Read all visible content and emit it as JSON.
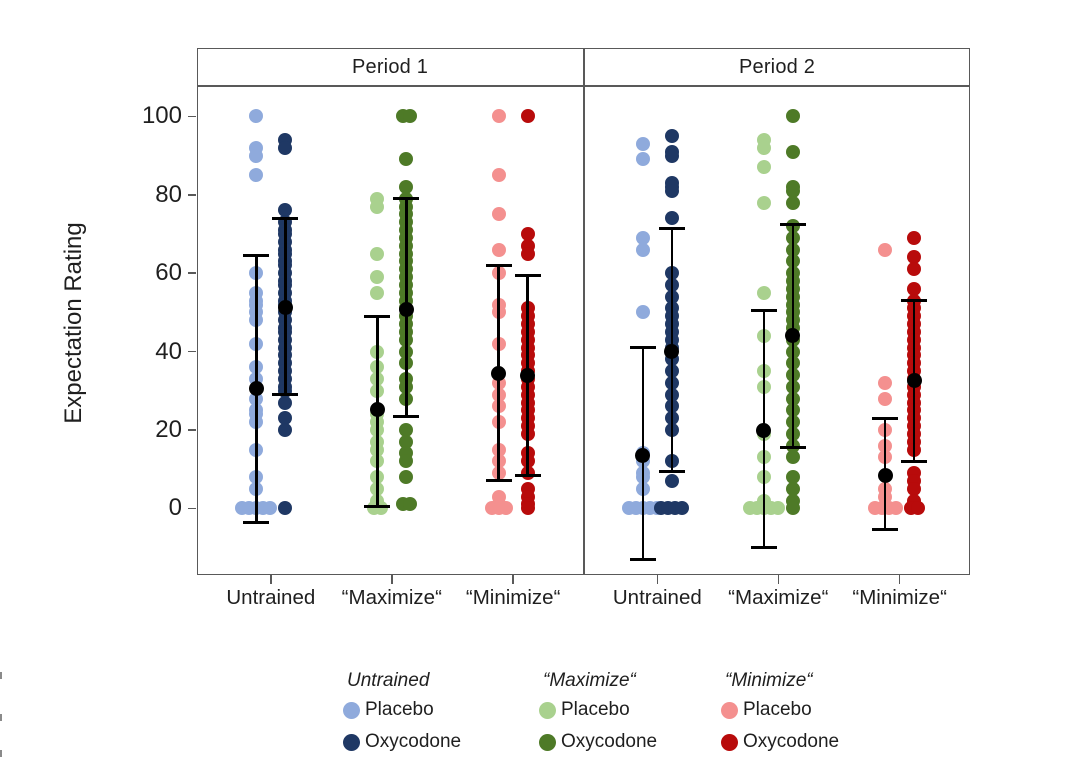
{
  "figure_title": "",
  "y_axis": {
    "title": "Expectation Rating",
    "tick_labels": [
      "100",
      "80",
      "60",
      "40",
      "20",
      "0"
    ]
  },
  "chart_data": {
    "type": "scatter",
    "subtype": "jittered-dot-plot-with-mean-error-bars",
    "title": "",
    "xlabel": "",
    "ylabel": "Expectation Rating",
    "ylim": [
      -17,
      108
    ],
    "yticks": [
      100,
      80,
      60,
      40,
      20,
      0
    ],
    "grid": false,
    "categories": [
      "Untrained",
      "“Maximize“",
      "“Minimize“"
    ],
    "panels": [
      {
        "label": "Period 1",
        "groups": [
          {
            "category": "Untrained",
            "category_index": 0,
            "series": "Placebo",
            "color": "#8FAADC",
            "mean": 30.5,
            "error_bar": [
              -3.5,
              64.5
            ],
            "points": [
              100,
              92,
              90,
              85,
              60,
              55,
              53,
              52,
              50,
              48,
              42,
              36,
              33,
              28,
              25,
              24,
              22,
              15,
              8,
              5,
              0,
              0,
              0,
              0,
              0
            ]
          },
          {
            "category": "Untrained",
            "category_index": 0,
            "series": "Oxycodone",
            "color": "#1F3864",
            "mean": 51.3,
            "error_bar": [
              29,
              74
            ],
            "points": [
              94,
              92,
              76,
              73,
              71,
              70,
              68,
              66,
              65,
              63,
              62,
              60,
              58,
              57,
              55,
              53,
              52,
              50,
              48,
              46,
              45,
              43,
              41,
              39,
              37,
              35,
              33,
              31,
              30,
              27,
              23,
              20,
              0
            ]
          },
          {
            "category": "“Maximize“",
            "category_index": 1,
            "series": "Placebo",
            "color": "#A9D18E",
            "mean": 25.3,
            "error_bar": [
              0.5,
              49
            ],
            "points": [
              79,
              77,
              65,
              59,
              55,
              40,
              36,
              33,
              30,
              24,
              22,
              20,
              17,
              15,
              12,
              8,
              5,
              2,
              1,
              0,
              0
            ]
          },
          {
            "category": "“Maximize“",
            "category_index": 1,
            "series": "Oxycodone",
            "color": "#4E7A27",
            "mean": 50.8,
            "error_bar": [
              23.5,
              79
            ],
            "points": [
              100,
              100,
              89,
              82,
              79,
              77,
              75,
              73,
              71,
              69,
              67,
              65,
              63,
              61,
              59,
              57,
              55,
              53,
              51,
              49,
              47,
              45,
              43,
              40,
              37,
              33,
              31,
              28,
              20,
              17,
              14,
              12,
              8,
              1,
              1
            ]
          },
          {
            "category": "“Minimize“",
            "category_index": 2,
            "series": "Placebo",
            "color": "#F4908F",
            "mean": 34.4,
            "error_bar": [
              7,
              62
            ],
            "points": [
              100,
              85,
              75,
              66,
              60,
              52,
              50,
              42,
              32,
              29,
              26,
              22,
              15,
              12,
              9,
              3,
              1,
              0,
              0,
              0
            ]
          },
          {
            "category": "“Minimize“",
            "category_index": 2,
            "series": "Oxycodone",
            "color": "#B80B0B",
            "mean": 33.8,
            "error_bar": [
              8.5,
              59.5
            ],
            "points": [
              100,
              70,
              67,
              65,
              51,
              49,
              47,
              45,
              43,
              41,
              39,
              37,
              35,
              33,
              31,
              29,
              27,
              25,
              23,
              21,
              19,
              14,
              12,
              9,
              5,
              3,
              1,
              0
            ]
          }
        ]
      },
      {
        "label": "Period 2",
        "groups": [
          {
            "category": "Untrained",
            "category_index": 0,
            "series": "Placebo",
            "color": "#8FAADC",
            "mean": 13.5,
            "error_bar": [
              -13,
              41
            ],
            "points": [
              93,
              89,
              69,
              66,
              50,
              14,
              12,
              9,
              8,
              5,
              0,
              0,
              0,
              0,
              0
            ]
          },
          {
            "category": "Untrained",
            "category_index": 0,
            "series": "Oxycodone",
            "color": "#1F3864",
            "mean": 40,
            "error_bar": [
              9.5,
              71.5
            ],
            "points": [
              95,
              91,
              90,
              83,
              82,
              81,
              74,
              60,
              57,
              54,
              51,
              49,
              47,
              45,
              43,
              41,
              38,
              35,
              32,
              29,
              26,
              23,
              20,
              12,
              7,
              0,
              0,
              0,
              0
            ]
          },
          {
            "category": "“Maximize“",
            "category_index": 1,
            "series": "Placebo",
            "color": "#A9D18E",
            "mean": 19.8,
            "error_bar": [
              -10,
              50.4
            ],
            "points": [
              94,
              92,
              87,
              78,
              55,
              44,
              35,
              31,
              19,
              13,
              8,
              2,
              0,
              0,
              0,
              0,
              0
            ]
          },
          {
            "category": "“Maximize“",
            "category_index": 1,
            "series": "Oxycodone",
            "color": "#4E7A27",
            "mean": 44,
            "error_bar": [
              15.5,
              72.5
            ],
            "points": [
              100,
              91,
              82,
              81,
              78,
              72,
              69,
              66,
              63,
              60,
              58,
              56,
              54,
              52,
              50,
              48,
              46,
              43,
              40,
              37,
              34,
              31,
              28,
              25,
              22,
              19,
              16,
              13,
              8,
              5,
              2,
              0
            ]
          },
          {
            "category": "“Minimize“",
            "category_index": 2,
            "series": "Placebo",
            "color": "#F4908F",
            "mean": 8.5,
            "error_bar": [
              -5.5,
              23
            ],
            "points": [
              66,
              32,
              28,
              20,
              16,
              13,
              5,
              3,
              0,
              0,
              0,
              0
            ]
          },
          {
            "category": "“Minimize“",
            "category_index": 2,
            "series": "Oxycodone",
            "color": "#B80B0B",
            "mean": 32.5,
            "error_bar": [
              12,
              53
            ],
            "points": [
              69,
              64,
              61,
              56,
              53,
              51,
              49,
              47,
              45,
              43,
              41,
              39,
              37,
              35,
              33,
              31,
              29,
              27,
              25,
              23,
              21,
              19,
              17,
              15,
              9,
              7,
              5,
              2,
              0,
              0
            ]
          }
        ]
      }
    ],
    "legend_position": "bottom"
  },
  "legend": {
    "columns": [
      {
        "header": "Untrained",
        "items": [
          {
            "label": "Placebo",
            "color": "#8FAADC"
          },
          {
            "label": "Oxycodone",
            "color": "#1F3864"
          }
        ]
      },
      {
        "header": "“Maximize“",
        "items": [
          {
            "label": "Placebo",
            "color": "#A9D18E"
          },
          {
            "label": "Oxycodone",
            "color": "#4E7A27"
          }
        ]
      },
      {
        "header": "“Minimize“",
        "items": [
          {
            "label": "Placebo",
            "color": "#F4908F"
          },
          {
            "label": "Oxycodone",
            "color": "#B80B0B"
          }
        ]
      }
    ]
  }
}
